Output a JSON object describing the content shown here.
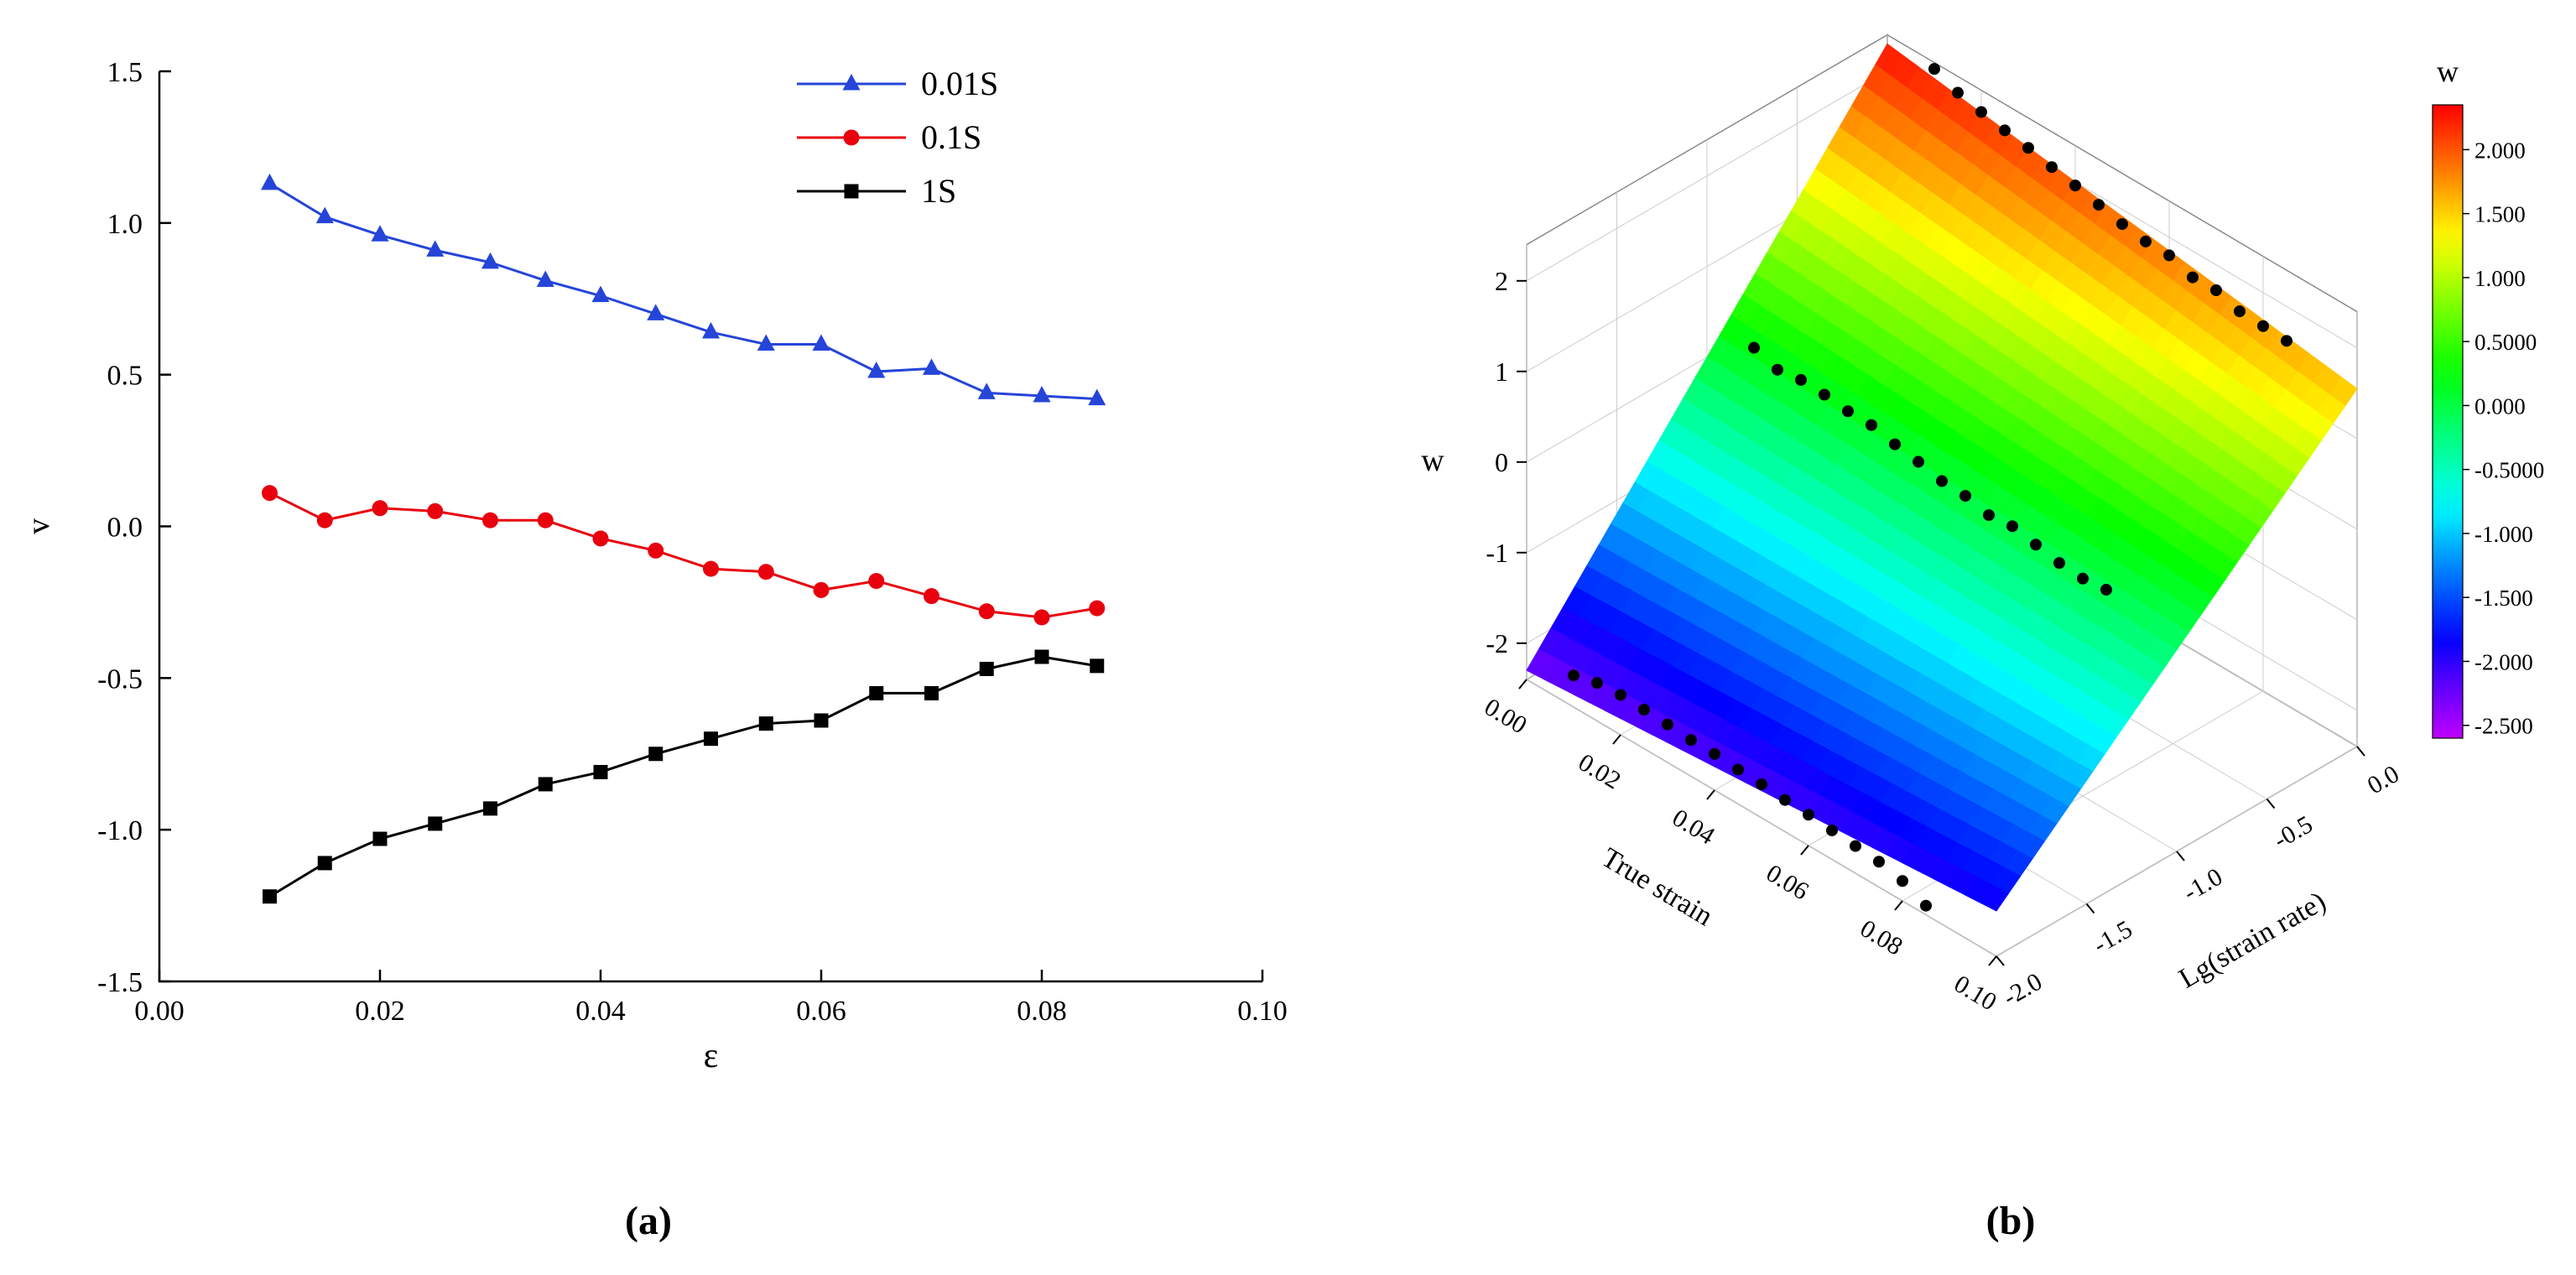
{
  "figure": {
    "panel_a_label": "(a)",
    "panel_b_label": "(b)"
  },
  "chart_data": [
    {
      "id": "a",
      "type": "line",
      "xlabel": "ε",
      "ylabel": "v",
      "xlim": [
        0.0,
        0.1
      ],
      "ylim": [
        -1.5,
        1.5
      ],
      "xticks": [
        0.0,
        0.02,
        0.04,
        0.06,
        0.08,
        0.1
      ],
      "xtick_labels": [
        "0.00",
        "0.02",
        "0.04",
        "0.06",
        "0.08",
        "0.10"
      ],
      "yticks": [
        -1.5,
        -1.0,
        -0.5,
        0.0,
        0.5,
        1.0,
        1.5
      ],
      "ytick_labels": [
        "-1.5",
        "-1.0",
        "-0.5",
        "0.0",
        "0.5",
        "1.0",
        "1.5"
      ],
      "legend_position": "top-right",
      "x": [
        0.01,
        0.015,
        0.02,
        0.025,
        0.03,
        0.035,
        0.04,
        0.045,
        0.05,
        0.055,
        0.06,
        0.065,
        0.07,
        0.075,
        0.08,
        0.085
      ],
      "series": [
        {
          "name": "0.01S",
          "color": "#2545d8",
          "marker": "triangle",
          "values": [
            1.13,
            1.02,
            0.96,
            0.91,
            0.87,
            0.81,
            0.76,
            0.7,
            0.64,
            0.6,
            0.6,
            0.51,
            0.52,
            0.44,
            0.43,
            0.42
          ]
        },
        {
          "name": "0.1S",
          "color": "#e8000d",
          "marker": "circle",
          "values": [
            0.11,
            0.02,
            0.06,
            0.05,
            0.02,
            0.02,
            -0.04,
            -0.08,
            -0.14,
            -0.15,
            -0.21,
            -0.18,
            -0.23,
            -0.28,
            -0.3,
            -0.27
          ]
        },
        {
          "name": "1S",
          "color": "#000000",
          "marker": "square",
          "values": [
            -1.22,
            -1.11,
            -1.03,
            -0.98,
            -0.93,
            -0.85,
            -0.81,
            -0.75,
            -0.7,
            -0.65,
            -0.64,
            -0.55,
            -0.55,
            -0.47,
            -0.43,
            -0.46
          ]
        }
      ]
    },
    {
      "id": "b",
      "type": "surface3d",
      "xlabel": "True strain",
      "ylabel": "Lg(strain rate)",
      "zlabel": "w",
      "xlim": [
        0.0,
        0.1
      ],
      "ylim": [
        -2.0,
        0.0
      ],
      "zlim": [
        -2,
        2
      ],
      "xtick_labels": [
        "0.00",
        "0.02",
        "0.04",
        "0.06",
        "0.08",
        "0.10"
      ],
      "ytick_labels": [
        "-2.0",
        "-1.5",
        "-1.0",
        "-0.5",
        "0.0"
      ],
      "ztick_labels": [
        "-2",
        "-1",
        "0",
        "1",
        "2"
      ],
      "surface_corners": {
        "s0_r0": 2.3,
        "s1_r0": 1.55,
        "s0_rm2": -2.3,
        "s1_rm2": -1.9
      },
      "colormap_range": [
        -2.6,
        2.35
      ],
      "colorbar": {
        "title": "w",
        "labels": [
          "2.000",
          "1.500",
          "1.000",
          "0.5000",
          "0.000",
          "-0.5000",
          "-1.000",
          "-1.500",
          "-2.000",
          "-2.500"
        ],
        "values": [
          2.0,
          1.5,
          1.0,
          0.5,
          0.0,
          -0.5,
          -1.0,
          -1.5,
          -2.0,
          -2.5
        ]
      },
      "scatter": {
        "strain": [
          0.01,
          0.015,
          0.02,
          0.025,
          0.03,
          0.035,
          0.04,
          0.045,
          0.05,
          0.055,
          0.06,
          0.065,
          0.07,
          0.075,
          0.08,
          0.085
        ],
        "rows": [
          {
            "lg_rate": 0,
            "w": [
              2.33,
              2.22,
              2.16,
              2.11,
              2.07,
              2.01,
              1.96,
              1.9,
              1.84,
              1.8,
              1.8,
              1.71,
              1.72,
              1.64,
              1.63,
              1.62
            ]
          },
          {
            "lg_rate": -1,
            "w": [
              0.41,
              0.32,
              0.36,
              0.35,
              0.32,
              0.32,
              0.26,
              0.22,
              0.16,
              0.15,
              0.09,
              0.12,
              0.07,
              0.02,
              0.0,
              0.03
            ]
          },
          {
            "lg_rate": -2,
            "w": [
              -2.05,
              -1.98,
              -1.96,
              -1.97,
              -1.98,
              -2.0,
              -2.0,
              -2.02,
              -2.03,
              -2.05,
              -2.06,
              -2.08,
              -2.1,
              -2.12,
              -2.18,
              -2.3
            ]
          }
        ]
      },
      "style": {
        "grid_color": "#cccccc",
        "box_color": "#8a8a8a",
        "dot_color": "#000000"
      }
    }
  ]
}
